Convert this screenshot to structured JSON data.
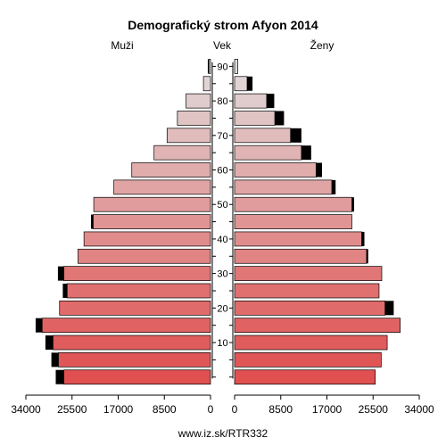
{
  "chart_data": {
    "type": "bar",
    "title": "Demografický strom Afyon 2014",
    "left_label": "Muži",
    "center_label": "Vek",
    "right_label": "Ženy",
    "source": "www.iz.sk/RTR332",
    "x_ticks_left": [
      "34000",
      "25500",
      "17000",
      "8500",
      "0"
    ],
    "x_ticks_right": [
      "0",
      "8500",
      "17000",
      "25500",
      "34000"
    ],
    "age_ticks": [
      "10",
      "20",
      "30",
      "40",
      "50",
      "60",
      "70",
      "80",
      "90"
    ],
    "xlim": [
      0,
      34000
    ],
    "age_groups": [
      "0-4",
      "5-9",
      "10-14",
      "15-19",
      "20-24",
      "25-29",
      "30-34",
      "35-39",
      "40-44",
      "45-49",
      "50-54",
      "55-59",
      "60-64",
      "65-69",
      "70-74",
      "75-79",
      "80-84",
      "85-89",
      "90+"
    ],
    "series": [
      {
        "name": "Muži",
        "values": [
          27000,
          28000,
          29000,
          31000,
          27800,
          26400,
          27000,
          24400,
          23300,
          21600,
          21500,
          17800,
          14500,
          10400,
          8000,
          6100,
          4500,
          1300,
          300
        ],
        "excess": [
          1500,
          1300,
          1400,
          1200,
          0,
          800,
          1100,
          0,
          0,
          400,
          0,
          0,
          0,
          0,
          0,
          0,
          0,
          0,
          200
        ]
      },
      {
        "name": "Ženy",
        "values": [
          25900,
          27000,
          28100,
          30500,
          27700,
          26600,
          27100,
          24300,
          23400,
          21600,
          21600,
          17900,
          15000,
          12300,
          10300,
          7400,
          5900,
          2300,
          600
        ],
        "excess": [
          0,
          0,
          0,
          0,
          1600,
          0,
          0,
          300,
          500,
          0,
          400,
          700,
          1100,
          1800,
          2000,
          1700,
          1400,
          1000,
          0
        ]
      }
    ],
    "colors": [
      "#e05050",
      "#e05656",
      "#e05c5c",
      "#e06262",
      "#e06b6b",
      "#e07070",
      "#e07676",
      "#e08484",
      "#e08c8c",
      "#e09494",
      "#e09c9c",
      "#e0a4a4",
      "#e0acac",
      "#e0b4b4",
      "#e0bcbc",
      "#e0c4c4",
      "#e0cccc",
      "#e0d4d4",
      "#e0dcdc"
    ],
    "excess_color": "#000000"
  }
}
